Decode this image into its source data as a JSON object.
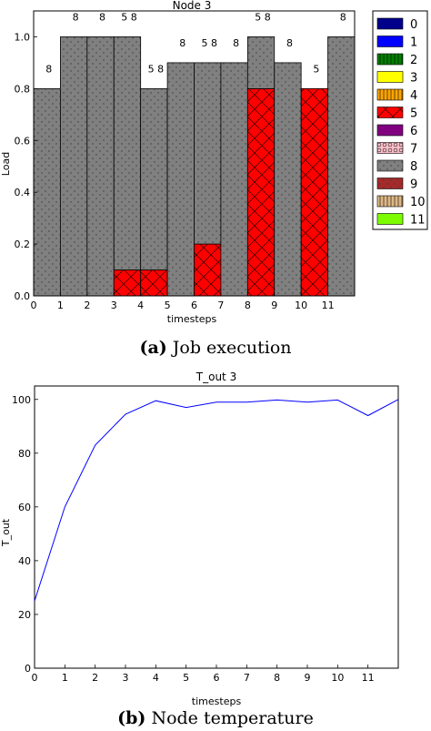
{
  "captions": {
    "a": {
      "tag": "(a)",
      "text": "Job execution"
    },
    "b": {
      "tag": "(b)",
      "text": "Node temperature"
    }
  },
  "colors": {
    "fill_8": "#808080",
    "fill_5": "#ff0000",
    "line": "#0000ff"
  },
  "chart_data": [
    {
      "type": "bar",
      "title": "Node 3",
      "xlabel": "timesteps",
      "ylabel": "Load",
      "xlim": [
        0,
        12
      ],
      "ylim": [
        0,
        1.1
      ],
      "grid": false,
      "x_ticks": [
        0,
        1,
        2,
        3,
        4,
        5,
        6,
        7,
        8,
        9,
        10,
        11
      ],
      "y_ticks": [
        "0.0",
        "0.2",
        "0.4",
        "0.6",
        "0.8",
        "1.0"
      ],
      "y_tick_values": [
        0,
        0.2,
        0.4,
        0.6,
        0.8,
        1.0
      ],
      "legend_position": "outside-right",
      "legend": [
        {
          "label": "0",
          "color": "#00008b",
          "pattern": "none"
        },
        {
          "label": "1",
          "color": "#0000ff",
          "pattern": "none"
        },
        {
          "label": "2",
          "color": "#008000",
          "pattern": "vline"
        },
        {
          "label": "3",
          "color": "#ffff00",
          "pattern": "none"
        },
        {
          "label": "4",
          "color": "#ffa500",
          "pattern": "vline"
        },
        {
          "label": "5",
          "color": "#ff0000",
          "pattern": "cross"
        },
        {
          "label": "6",
          "color": "#800080",
          "pattern": "none"
        },
        {
          "label": "7",
          "color": "#ffc0cb",
          "pattern": "circle"
        },
        {
          "label": "8",
          "color": "#808080",
          "pattern": "dot"
        },
        {
          "label": "9",
          "color": "#a52a2a",
          "pattern": "dot"
        },
        {
          "label": "10",
          "color": "#deb887",
          "pattern": "vline"
        },
        {
          "label": "11",
          "color": "#7cfc00",
          "pattern": "none"
        }
      ],
      "bars": [
        {
          "t": 0,
          "segments": [
            {
              "job": 8,
              "from": 0,
              "to": 0.8
            }
          ],
          "label": "8"
        },
        {
          "t": 1,
          "segments": [
            {
              "job": 8,
              "from": 0,
              "to": 1.0
            }
          ],
          "label": "8"
        },
        {
          "t": 2,
          "segments": [
            {
              "job": 8,
              "from": 0,
              "to": 1.0
            }
          ],
          "label": "8"
        },
        {
          "t": 3,
          "segments": [
            {
              "job": 5,
              "from": 0,
              "to": 0.1
            },
            {
              "job": 8,
              "from": 0.1,
              "to": 1.0
            }
          ],
          "label": "5 8"
        },
        {
          "t": 4,
          "segments": [
            {
              "job": 5,
              "from": 0,
              "to": 0.1
            },
            {
              "job": 8,
              "from": 0.1,
              "to": 0.8
            }
          ],
          "label": "5 8"
        },
        {
          "t": 5,
          "segments": [
            {
              "job": 8,
              "from": 0,
              "to": 0.9
            }
          ],
          "label": "8"
        },
        {
          "t": 6,
          "segments": [
            {
              "job": 5,
              "from": 0,
              "to": 0.2
            },
            {
              "job": 8,
              "from": 0.2,
              "to": 0.9
            }
          ],
          "label": "5 8"
        },
        {
          "t": 7,
          "segments": [
            {
              "job": 8,
              "from": 0,
              "to": 0.9
            }
          ],
          "label": "8"
        },
        {
          "t": 8,
          "segments": [
            {
              "job": 5,
              "from": 0,
              "to": 0.8
            },
            {
              "job": 8,
              "from": 0.8,
              "to": 1.0
            }
          ],
          "label": "5 8"
        },
        {
          "t": 9,
          "segments": [
            {
              "job": 8,
              "from": 0,
              "to": 0.9
            }
          ],
          "label": "8"
        },
        {
          "t": 10,
          "segments": [
            {
              "job": 5,
              "from": 0,
              "to": 0.8
            }
          ],
          "label": "5"
        },
        {
          "t": 11,
          "segments": [
            {
              "job": 8,
              "from": 0,
              "to": 1.0
            }
          ],
          "label": "8"
        }
      ]
    },
    {
      "type": "line",
      "title": "T_out 3",
      "xlabel": "timesteps",
      "ylabel": "T_out",
      "xlim": [
        0,
        12
      ],
      "ylim": [
        0,
        105
      ],
      "grid": false,
      "x_ticks": [
        0,
        1,
        2,
        3,
        4,
        5,
        6,
        7,
        8,
        9,
        10,
        11
      ],
      "y_ticks": [
        0,
        20,
        40,
        60,
        80,
        100
      ],
      "x": [
        0,
        1,
        2,
        3,
        4,
        5,
        6,
        7,
        8,
        9,
        10,
        11,
        12
      ],
      "y": [
        25,
        60,
        83,
        94.5,
        99.5,
        97,
        99,
        99,
        99.8,
        99,
        99.8,
        94,
        100
      ]
    }
  ]
}
